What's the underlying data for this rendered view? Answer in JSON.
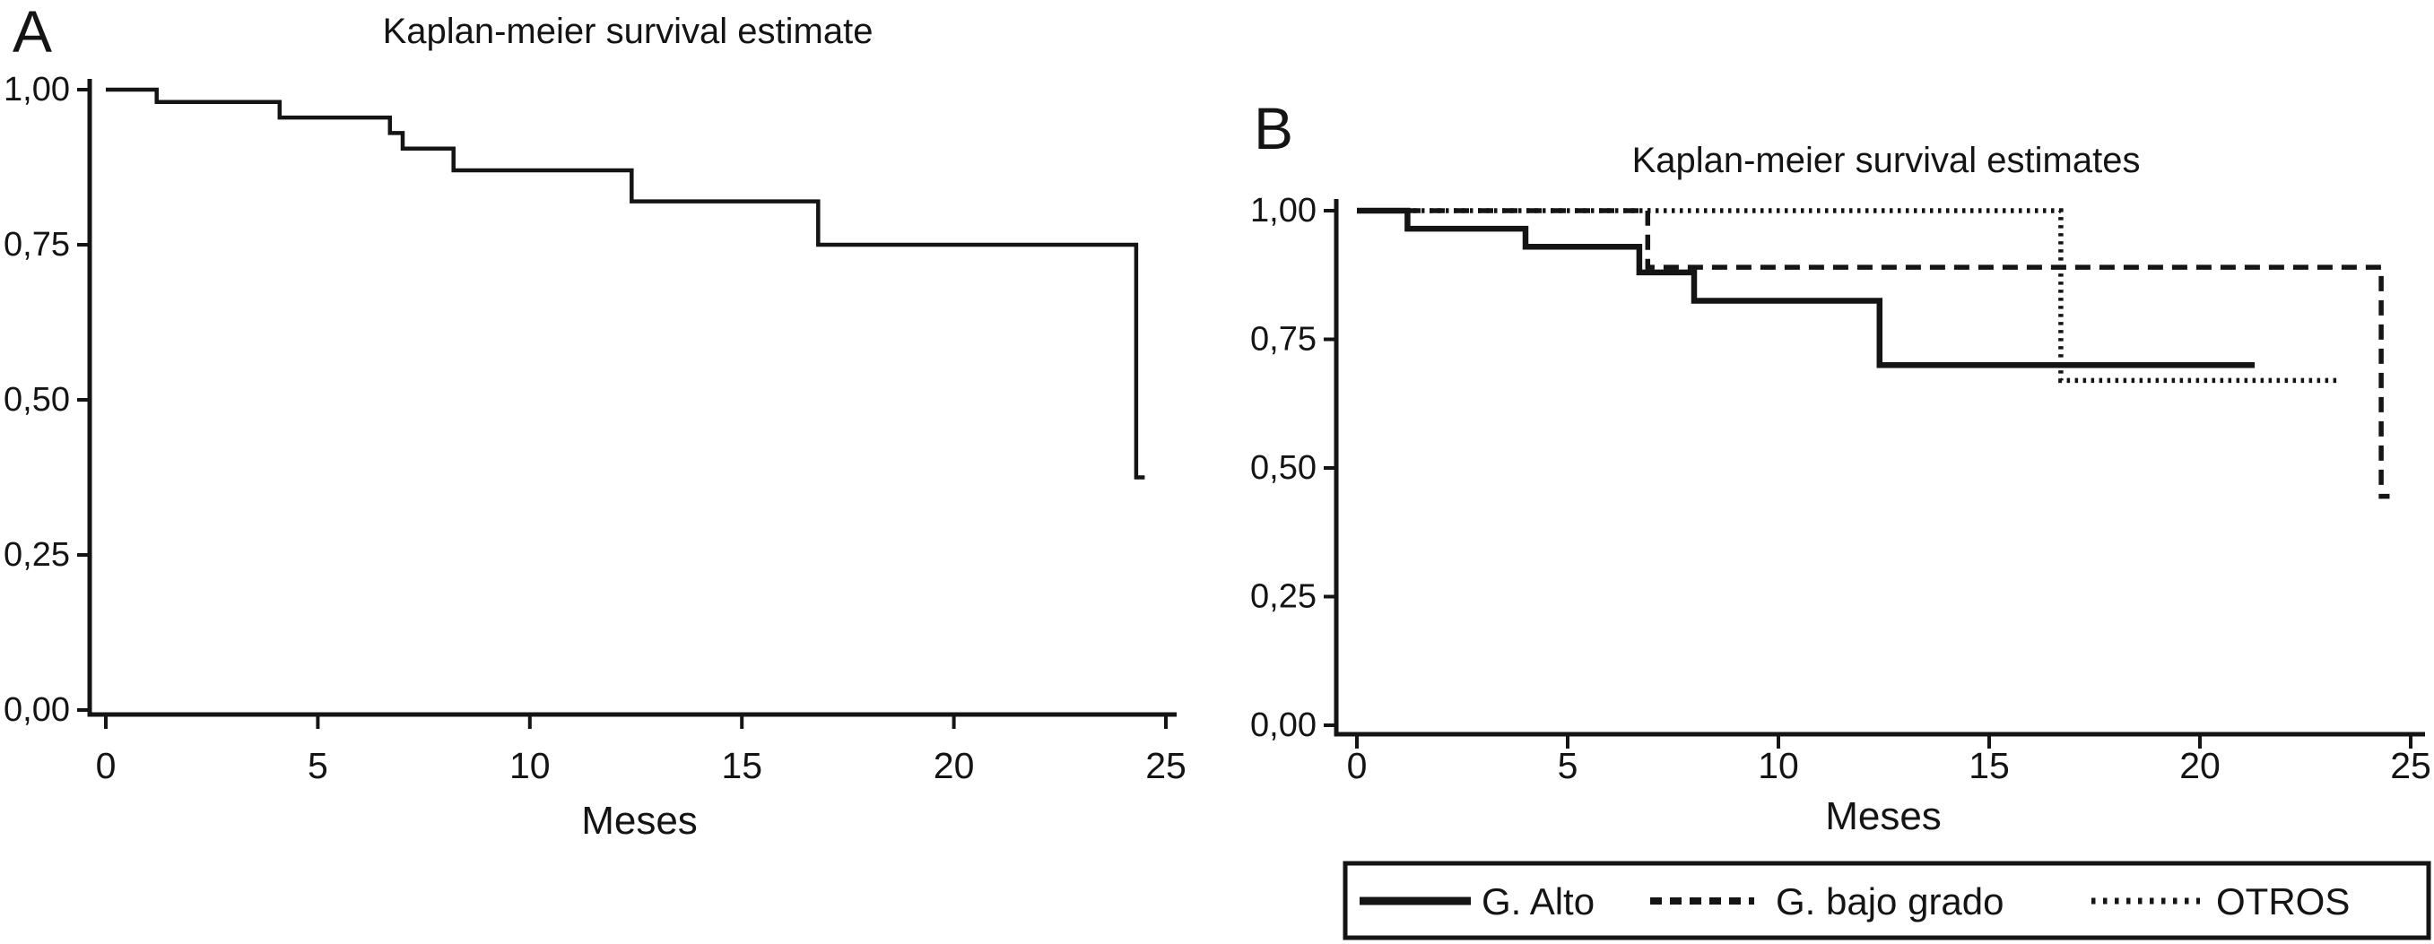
{
  "figure": {
    "panel_labels": [
      "A",
      "B"
    ]
  },
  "colors": {
    "foreground": "#141414",
    "background": "#ffffff"
  },
  "chart_data": [
    {
      "panel": "A",
      "type": "line",
      "subtype": "kaplan-meier-step",
      "title": "Kaplan-meier survival estimate",
      "xlabel": "Meses",
      "xlim": [
        0,
        25
      ],
      "ylim": [
        0,
        1
      ],
      "grid": false,
      "x_ticks": [
        "0",
        "5",
        "10",
        "15",
        "20",
        "25"
      ],
      "x_tick_values": [
        0,
        5,
        10,
        15,
        20,
        25
      ],
      "y_ticks": [
        "1,00",
        "0,75",
        "0,50",
        "0,25",
        "0,00"
      ],
      "y_tick_values": [
        1.0,
        0.75,
        0.5,
        0.25,
        0.0
      ],
      "series": [
        {
          "name": "",
          "style": "solid",
          "step_x": [
            0,
            1.2,
            4.1,
            6.7,
            7.0,
            8.2,
            12.4,
            16.8,
            24.3
          ],
          "step_y": [
            1.0,
            0.98,
            0.955,
            0.93,
            0.905,
            0.87,
            0.82,
            0.75,
            0.375
          ],
          "end_x": 24.5
        }
      ]
    },
    {
      "panel": "B",
      "type": "line",
      "subtype": "kaplan-meier-step",
      "title": "Kaplan-meier survival estimates",
      "xlabel": "Meses",
      "xlim": [
        0,
        25
      ],
      "ylim": [
        0,
        1
      ],
      "grid": false,
      "legend_position": "bottom",
      "x_ticks": [
        "0",
        "5",
        "10",
        "15",
        "20",
        "25"
      ],
      "x_tick_values": [
        0,
        5,
        10,
        15,
        20,
        25
      ],
      "y_ticks": [
        "1,00",
        "0,75",
        "0,50",
        "0,25",
        "0,00"
      ],
      "y_tick_values": [
        1.0,
        0.75,
        0.5,
        0.25,
        0.0
      ],
      "series": [
        {
          "name": "G. Alto",
          "style": "solid",
          "step_x": [
            0,
            1.2,
            4.0,
            6.7,
            8.0,
            12.4
          ],
          "step_y": [
            1.0,
            0.965,
            0.93,
            0.88,
            0.825,
            0.7
          ],
          "end_x": 21.3
        },
        {
          "name": "G. bajo grado",
          "style": "dashed",
          "step_x": [
            0,
            6.9,
            24.3
          ],
          "step_y": [
            1.0,
            0.89,
            0.445
          ],
          "end_x": 24.5
        },
        {
          "name": "OTROS",
          "style": "dotted",
          "step_x": [
            0,
            16.7
          ],
          "step_y": [
            1.0,
            0.67
          ],
          "end_x": 23.3
        }
      ]
    }
  ]
}
